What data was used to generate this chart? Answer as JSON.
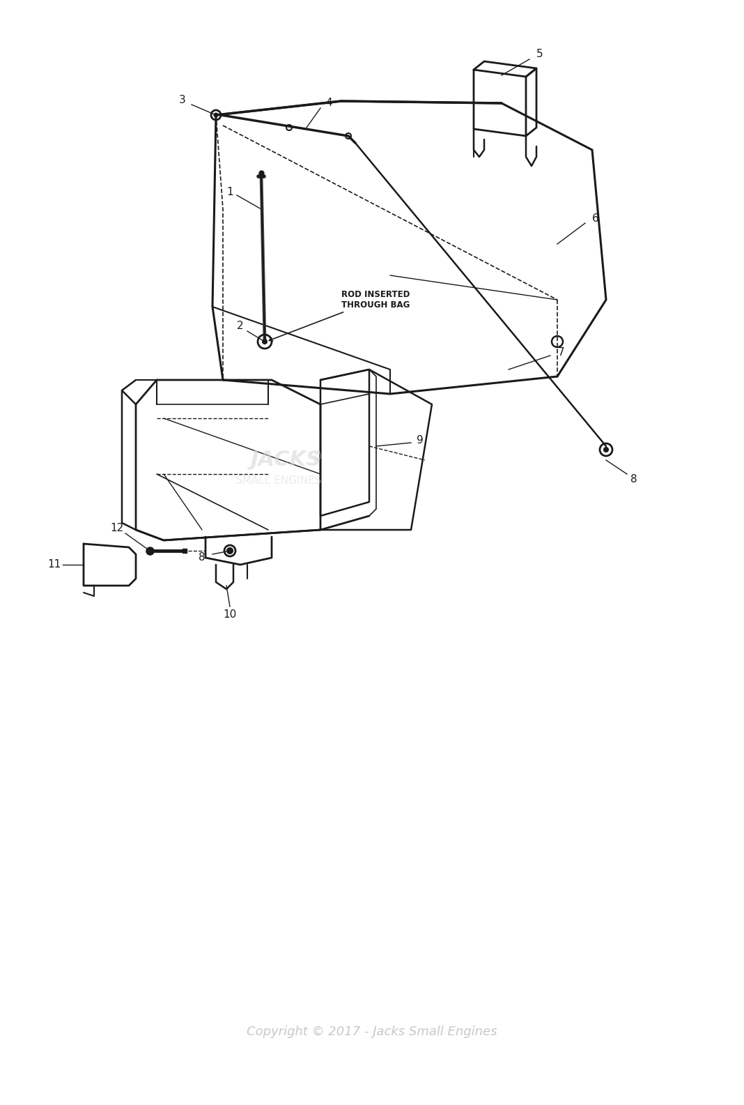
{
  "copyright_text": "Copyright © 2017 - Jacks Small Engines",
  "copyright_color": "#c8c8c8",
  "background_color": "#ffffff",
  "line_color": "#1a1a1a",
  "annotation_text": "ROD INSERTED\nTHROUGH BAG",
  "figsize": [
    10.68,
    15.85
  ],
  "dpi": 100
}
